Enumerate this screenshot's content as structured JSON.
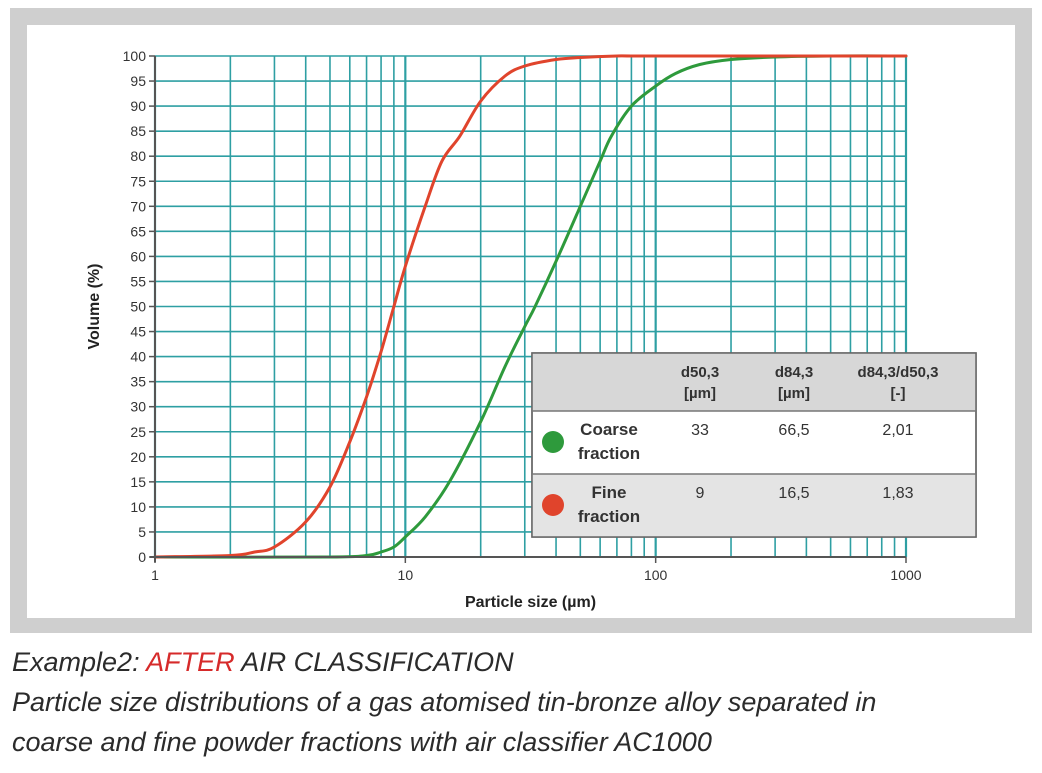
{
  "chart_data": {
    "type": "line",
    "xscale": "log",
    "xlim": [
      1,
      1000
    ],
    "ylim": [
      0,
      100
    ],
    "xlabel": "Particle size (µm)",
    "ylabel": "Volume (%)",
    "xticks": [
      "1",
      "10",
      "100",
      "1000"
    ],
    "yticks": [
      "0",
      "5",
      "10",
      "15",
      "20",
      "25",
      "30",
      "35",
      "40",
      "45",
      "50",
      "55",
      "60",
      "65",
      "70",
      "75",
      "80",
      "85",
      "90",
      "95",
      "100"
    ],
    "grid": true,
    "colors": {
      "coarse": "#2e9a3c",
      "fine": "#e0442c",
      "grid": "#2e9fa3",
      "table_header": "#d7d7d7"
    },
    "series": [
      {
        "name": "Coarse fraction",
        "color": "#2e9a3c",
        "x": [
          1,
          5,
          7,
          8,
          9,
          10,
          12,
          15,
          20,
          25,
          30,
          33,
          40,
          50,
          60,
          66.5,
          80,
          100,
          120,
          150,
          200,
          300,
          500,
          1000
        ],
        "y": [
          0,
          0,
          0.3,
          1,
          2,
          4,
          8,
          15,
          27,
          38,
          46,
          50,
          59,
          70,
          79,
          84,
          90,
          94,
          96.5,
          98.3,
          99.3,
          99.8,
          100,
          100
        ]
      },
      {
        "name": "Fine fraction",
        "color": "#e0442c",
        "x": [
          1,
          2,
          2.5,
          3,
          4,
          5,
          6,
          7,
          8,
          9,
          10,
          12,
          14,
          16.5,
          20,
          25,
          30,
          40,
          50,
          70,
          100,
          1000
        ],
        "y": [
          0,
          0.3,
          1,
          2,
          7,
          14,
          23,
          32,
          41,
          50,
          58,
          70,
          79,
          84,
          91,
          96,
          98,
          99.3,
          99.7,
          100,
          100,
          100
        ]
      }
    ],
    "legend_table": {
      "headers": [
        "d50,3\n[µm]",
        "d84,3\n[µm]",
        "d84,3/d50,3\n[-]"
      ],
      "rows": [
        {
          "label": "Coarse\nfraction",
          "marker_color": "#2e9a3c",
          "values": [
            "33",
            "66,5",
            "2,01"
          ]
        },
        {
          "label": "Fine\nfraction",
          "marker_color": "#e0442c",
          "values": [
            "9",
            "16,5",
            "1,83"
          ]
        }
      ]
    }
  },
  "caption": {
    "line1_prefix": "Example2: ",
    "line1_accent": "AFTER",
    "line1_suffix": " AIR CLASSIFICATION",
    "line2": "Particle size distributions of a gas atomised tin-bronze alloy separated in",
    "line3": "coarse and fine powder fractions with air classifier AC1000"
  }
}
